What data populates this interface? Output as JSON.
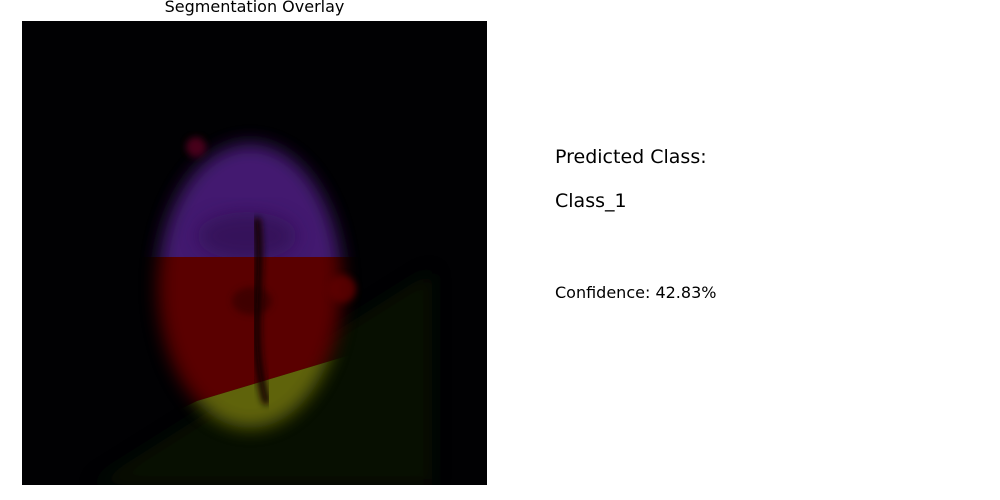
{
  "overlay": {
    "title": "Segmentation Overlay",
    "image_subject": "segmentation-overlay-image"
  },
  "prediction": {
    "label": "Predicted Class:",
    "value": "Class_1",
    "confidence_text": "Confidence: 42.83%"
  },
  "colors": {
    "background": "#ffffff",
    "image_background": "#010103",
    "purple_region": "#4a1a7a",
    "red_region": "#5e0606",
    "yellow_region": "#6a6d10",
    "green_shadow": "#0b1b05"
  }
}
